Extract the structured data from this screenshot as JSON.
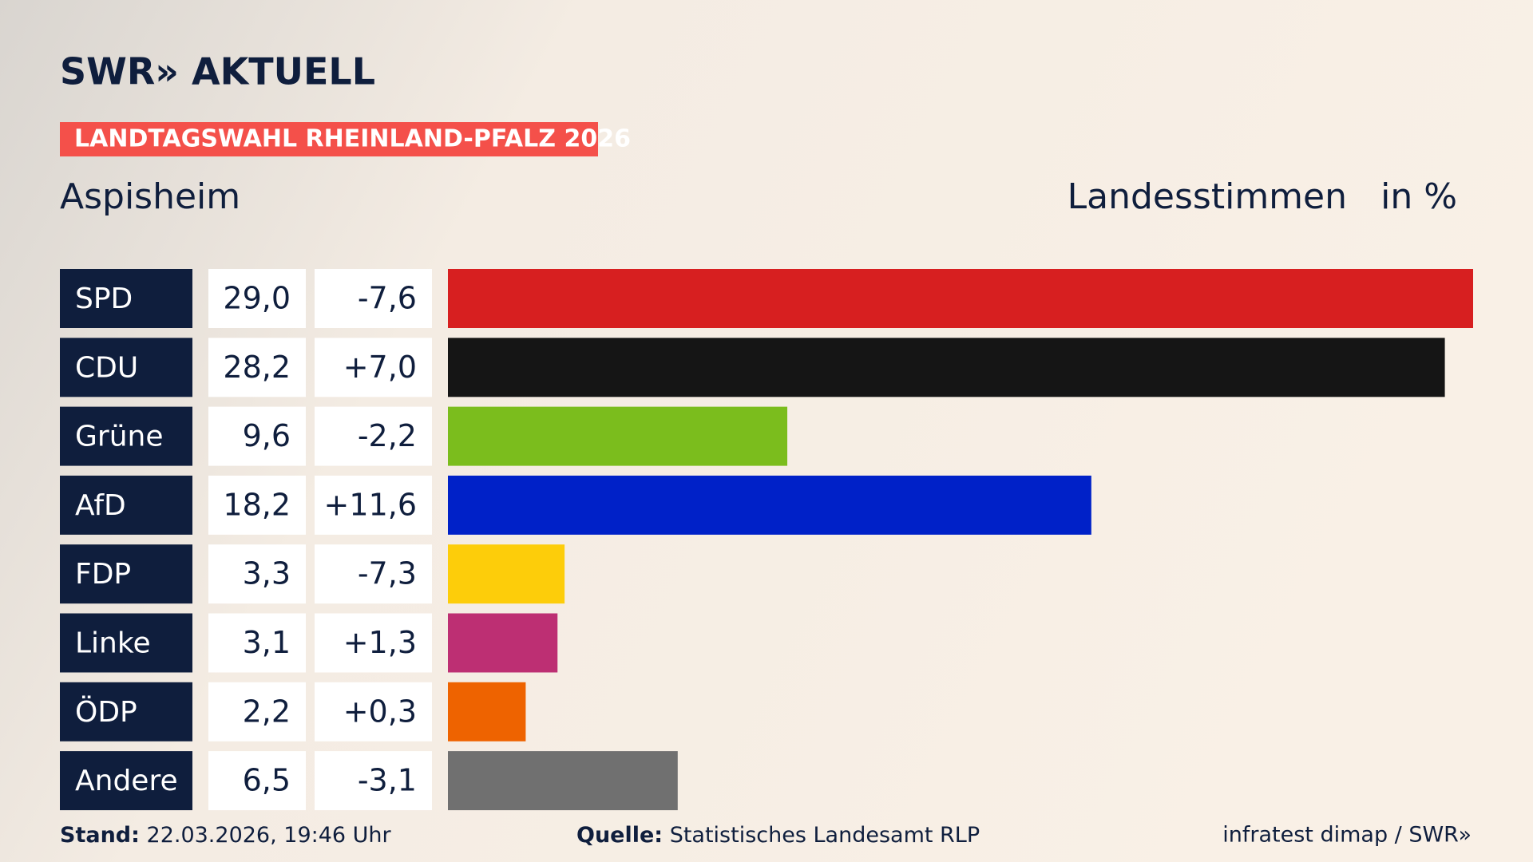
{
  "chart_data": {
    "type": "bar",
    "brand": "SWR» AKTUELL",
    "title": "LANDTAGSWAHL RHEINLAND-PFALZ 2026",
    "subtitle": "Aspisheim",
    "measure": "Landesstimmen",
    "unit": "in %",
    "categories": [
      "SPD",
      "CDU",
      "Grüne",
      "AfD",
      "FDP",
      "Linke",
      "ÖDP",
      "Andere"
    ],
    "values": [
      29.0,
      28.2,
      9.6,
      18.2,
      3.3,
      3.1,
      2.2,
      6.5
    ],
    "value_labels": [
      "29,0",
      "28,2",
      "9,6",
      "18,2",
      "3,3",
      "3,1",
      "2,2",
      "6,5"
    ],
    "changes": [
      "-7,6",
      "+7,0",
      "-2,2",
      "+11,6",
      "-7,3",
      "+1,3",
      "+0,3",
      "-3,1"
    ],
    "colors": [
      "#d71f20",
      "#151515",
      "#7bbd1d",
      "#0021c8",
      "#fdcd0a",
      "#bd2f73",
      "#ee6300",
      "#707070"
    ],
    "footer": {
      "stand_label": "Stand:",
      "stand": "22.03.2026, 19:46 Uhr",
      "source_label": "Quelle:",
      "source": "Statistisches Landesamt RLP",
      "credit": "infratest dimap / SWR»"
    }
  }
}
